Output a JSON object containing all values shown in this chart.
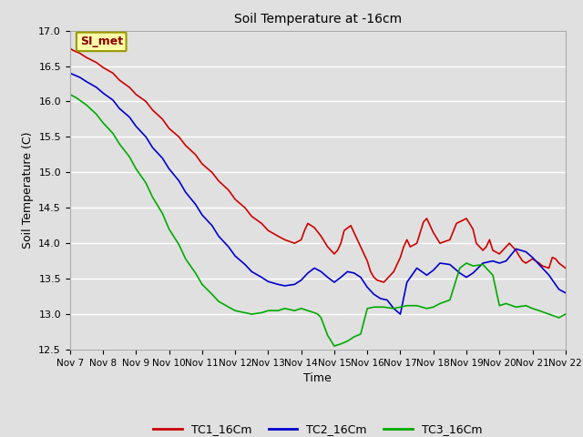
{
  "title": "Soil Temperature at -16cm",
  "xlabel": "Time",
  "ylabel": "Soil Temperature (C)",
  "ylim": [
    12.5,
    17.0
  ],
  "yticks": [
    12.5,
    13.0,
    13.5,
    14.0,
    14.5,
    15.0,
    15.5,
    16.0,
    16.5,
    17.0
  ],
  "xtick_labels": [
    "Nov 7",
    "Nov 8",
    "Nov 9",
    "Nov 10",
    "Nov 11",
    "Nov 12",
    "Nov 13",
    "Nov 14",
    "Nov 15",
    "Nov 16",
    "Nov 17",
    "Nov 18",
    "Nov 19",
    "Nov 20",
    "Nov 21",
    "Nov 22"
  ],
  "annotation_text": "SI_met",
  "annotation_box_facecolor": "#FFFFAA",
  "annotation_box_edgecolor": "#999900",
  "annotation_text_color": "#880000",
  "fig_facecolor": "#E0E0E0",
  "axes_facecolor": "#E0E0E0",
  "grid_color": "#ffffff",
  "series": {
    "TC1_16Cm": {
      "color": "#CC0000",
      "x": [
        0,
        0.1,
        0.3,
        0.5,
        0.8,
        1.0,
        1.3,
        1.5,
        1.8,
        2.0,
        2.3,
        2.5,
        2.8,
        3.0,
        3.3,
        3.5,
        3.8,
        4.0,
        4.3,
        4.5,
        4.8,
        5.0,
        5.3,
        5.5,
        5.8,
        6.0,
        6.3,
        6.5,
        6.8,
        7.0,
        7.1,
        7.2,
        7.4,
        7.6,
        7.8,
        8.0,
        8.1,
        8.2,
        8.3,
        8.5,
        8.6,
        8.7,
        8.8,
        9.0,
        9.1,
        9.2,
        9.3,
        9.5,
        9.6,
        9.7,
        9.8,
        10.0,
        10.1,
        10.2,
        10.3,
        10.5,
        10.6,
        10.7,
        10.8,
        11.0,
        11.2,
        11.5,
        11.7,
        12.0,
        12.2,
        12.3,
        12.5,
        12.6,
        12.7,
        12.8,
        13.0,
        13.2,
        13.3,
        13.5,
        13.6,
        13.7,
        13.8,
        14.0,
        14.2,
        14.3,
        14.5,
        14.6,
        14.7,
        14.8,
        15.0
      ],
      "y": [
        16.75,
        16.72,
        16.68,
        16.62,
        16.55,
        16.48,
        16.4,
        16.3,
        16.2,
        16.1,
        16.0,
        15.88,
        15.75,
        15.62,
        15.5,
        15.38,
        15.25,
        15.12,
        15.0,
        14.88,
        14.75,
        14.62,
        14.5,
        14.38,
        14.28,
        14.18,
        14.1,
        14.05,
        14.0,
        14.05,
        14.18,
        14.28,
        14.22,
        14.1,
        13.95,
        13.85,
        13.9,
        14.0,
        14.18,
        14.25,
        14.15,
        14.05,
        13.95,
        13.75,
        13.6,
        13.52,
        13.48,
        13.45,
        13.5,
        13.55,
        13.6,
        13.8,
        13.95,
        14.05,
        13.95,
        14.0,
        14.15,
        14.3,
        14.35,
        14.15,
        14.0,
        14.05,
        14.28,
        14.35,
        14.2,
        14.0,
        13.9,
        13.95,
        14.05,
        13.9,
        13.85,
        13.95,
        14.0,
        13.9,
        13.82,
        13.75,
        13.72,
        13.78,
        13.72,
        13.68,
        13.65,
        13.8,
        13.78,
        13.72,
        13.65
      ]
    },
    "TC2_16Cm": {
      "color": "#0000CC",
      "x": [
        0,
        0.1,
        0.3,
        0.5,
        0.8,
        1.0,
        1.3,
        1.5,
        1.8,
        2.0,
        2.3,
        2.5,
        2.8,
        3.0,
        3.3,
        3.5,
        3.8,
        4.0,
        4.3,
        4.5,
        4.8,
        5.0,
        5.3,
        5.5,
        5.8,
        6.0,
        6.3,
        6.5,
        6.8,
        7.0,
        7.2,
        7.4,
        7.6,
        7.8,
        8.0,
        8.2,
        8.4,
        8.6,
        8.8,
        9.0,
        9.2,
        9.4,
        9.6,
        9.8,
        10.0,
        10.2,
        10.5,
        10.8,
        11.0,
        11.2,
        11.5,
        11.8,
        12.0,
        12.2,
        12.5,
        12.8,
        13.0,
        13.2,
        13.5,
        13.8,
        14.0,
        14.2,
        14.5,
        14.8,
        15.0
      ],
      "y": [
        16.4,
        16.38,
        16.34,
        16.28,
        16.2,
        16.12,
        16.02,
        15.9,
        15.78,
        15.65,
        15.5,
        15.35,
        15.2,
        15.05,
        14.88,
        14.72,
        14.55,
        14.4,
        14.25,
        14.1,
        13.95,
        13.82,
        13.7,
        13.6,
        13.52,
        13.46,
        13.42,
        13.4,
        13.42,
        13.48,
        13.58,
        13.65,
        13.6,
        13.52,
        13.45,
        13.52,
        13.6,
        13.58,
        13.52,
        13.38,
        13.28,
        13.22,
        13.2,
        13.08,
        13.0,
        13.45,
        13.65,
        13.55,
        13.62,
        13.72,
        13.7,
        13.58,
        13.52,
        13.58,
        13.72,
        13.75,
        13.72,
        13.75,
        13.92,
        13.88,
        13.8,
        13.7,
        13.55,
        13.35,
        13.3
      ]
    },
    "TC3_16Cm": {
      "color": "#00AA00",
      "x": [
        0,
        0.2,
        0.5,
        0.8,
        1.0,
        1.3,
        1.5,
        1.8,
        2.0,
        2.3,
        2.5,
        2.8,
        3.0,
        3.3,
        3.5,
        3.8,
        4.0,
        4.3,
        4.5,
        4.8,
        5.0,
        5.3,
        5.5,
        5.8,
        6.0,
        6.3,
        6.5,
        6.8,
        7.0,
        7.2,
        7.4,
        7.5,
        7.6,
        7.8,
        8.0,
        8.2,
        8.4,
        8.5,
        8.6,
        8.7,
        8.8,
        9.0,
        9.2,
        9.5,
        9.8,
        10.0,
        10.2,
        10.5,
        10.8,
        11.0,
        11.2,
        11.5,
        11.8,
        12.0,
        12.2,
        12.5,
        12.8,
        13.0,
        13.2,
        13.5,
        13.8,
        14.0,
        14.2,
        14.5,
        14.8,
        15.0
      ],
      "y": [
        16.1,
        16.05,
        15.95,
        15.82,
        15.7,
        15.55,
        15.4,
        15.22,
        15.05,
        14.85,
        14.65,
        14.42,
        14.2,
        13.98,
        13.78,
        13.58,
        13.42,
        13.28,
        13.18,
        13.1,
        13.05,
        13.02,
        13.0,
        13.02,
        13.05,
        13.05,
        13.08,
        13.05,
        13.08,
        13.05,
        13.02,
        13.0,
        12.95,
        12.7,
        12.55,
        12.58,
        12.62,
        12.65,
        12.68,
        12.7,
        12.72,
        13.08,
        13.1,
        13.1,
        13.08,
        13.1,
        13.12,
        13.12,
        13.08,
        13.1,
        13.15,
        13.2,
        13.65,
        13.72,
        13.68,
        13.7,
        13.55,
        13.12,
        13.15,
        13.1,
        13.12,
        13.08,
        13.05,
        13.0,
        12.95,
        13.0
      ]
    }
  },
  "xlim": [
    0,
    15
  ],
  "figsize": [
    6.4,
    4.8
  ],
  "dpi": 100
}
